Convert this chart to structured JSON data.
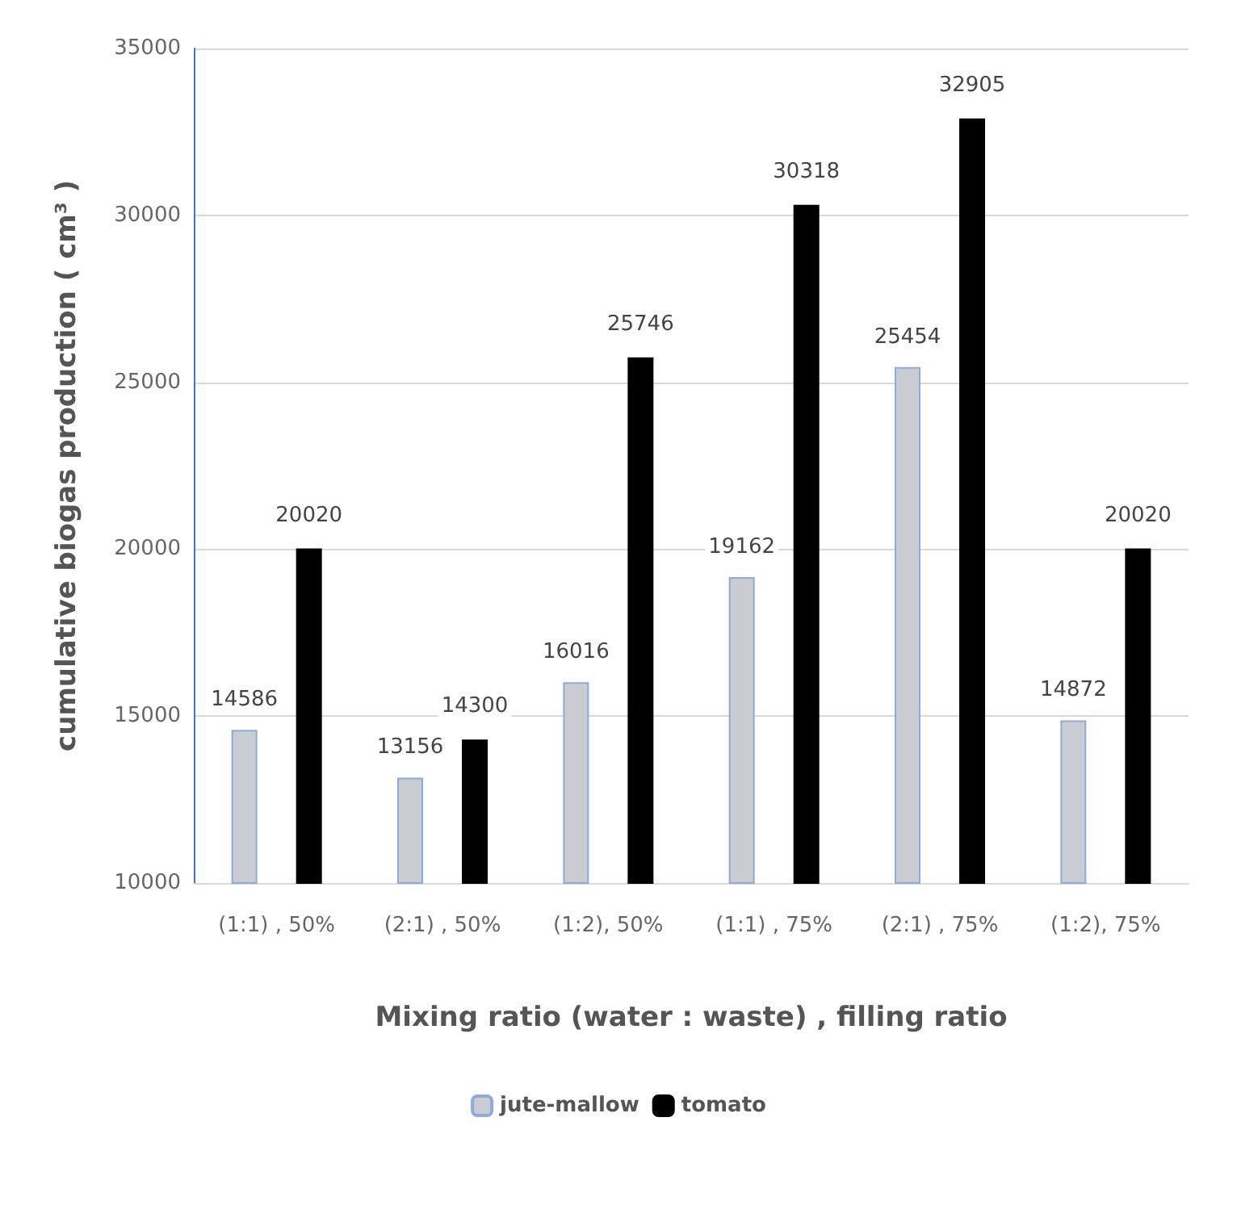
{
  "chart_data": {
    "type": "bar",
    "xlabel": "Mixing ratio (water : waste) , filling ratio",
    "ylabel": "cumulative biogas production ( cm³ )",
    "categories": [
      "(1:1) , 50%",
      "(2:1) , 50%",
      "(1:2), 50%",
      "(1:1) , 75%",
      "(2:1) , 75%",
      "(1:2), 75%"
    ],
    "series": [
      {
        "name": "jute-mallow",
        "color": "#c9cdd3",
        "values": [
          14586,
          13156,
          16016,
          19162,
          25454,
          14872
        ]
      },
      {
        "name": "tomato",
        "color": "#000000",
        "values": [
          20020,
          14300,
          25746,
          30318,
          32905,
          20020
        ]
      }
    ],
    "ylim": [
      10000,
      35000
    ],
    "yticks": [
      10000,
      15000,
      20000,
      25000,
      30000,
      35000
    ],
    "grid": "y",
    "legend": "bottom",
    "data_labels": true
  }
}
